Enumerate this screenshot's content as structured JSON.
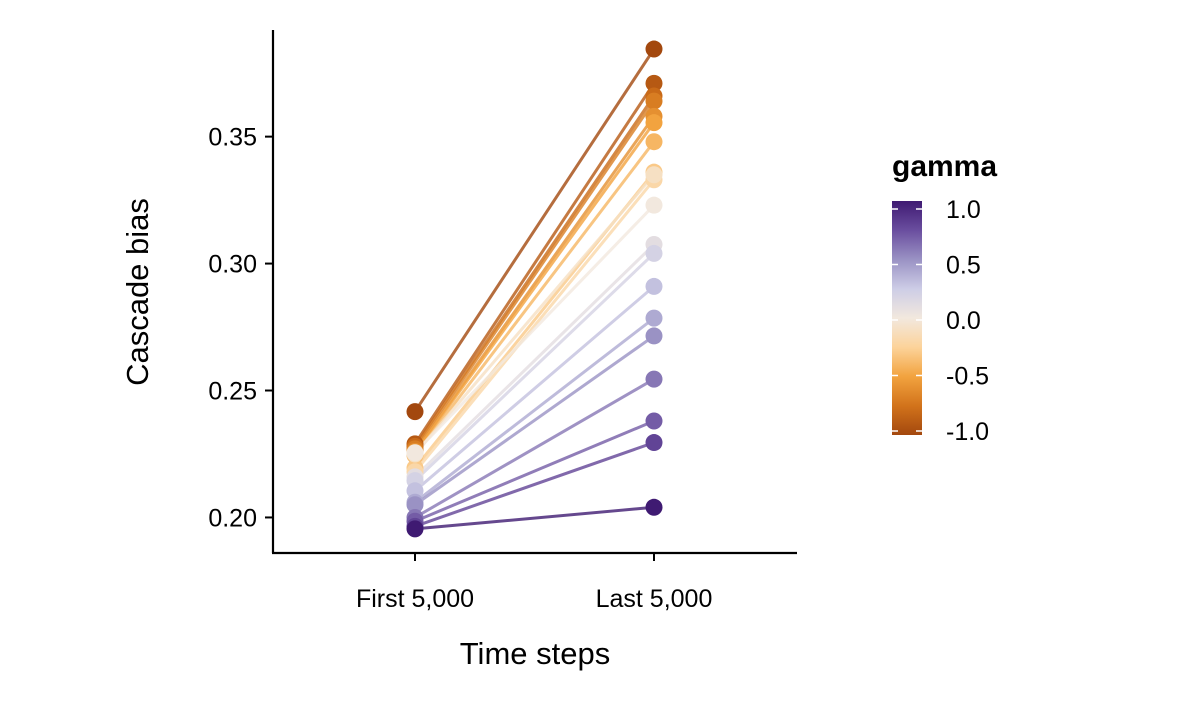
{
  "chart_data": {
    "type": "line",
    "title": "",
    "xlabel": "Time steps",
    "ylabel": "Cascade bias",
    "categories": [
      "First 5,000",
      "Last 5,000"
    ],
    "ylim": [
      0.186,
      0.392
    ],
    "yticks": [
      0.2,
      0.25,
      0.3,
      0.35
    ],
    "ytick_labels": [
      "0.20",
      "0.25",
      "0.30",
      "0.35"
    ],
    "grid": false,
    "legend": {
      "title": "gamma",
      "placement": "right",
      "type": "colorbar",
      "range": [
        -1.0,
        1.0
      ],
      "ticks": [
        1.0,
        0.5,
        0.0,
        -0.5,
        -1.0
      ],
      "tick_labels": [
        "1.0",
        "0.5",
        "0.0",
        "-0.5",
        "-1.0"
      ],
      "colors": [
        "#a3480e",
        "#d2731b",
        "#f2a33f",
        "#fcd39a",
        "#f2e8de",
        "#cdcde6",
        "#9a92c4",
        "#6a4e9f",
        "#3f1a72"
      ]
    },
    "series": [
      {
        "gamma": -1.0,
        "values": [
          0.2417,
          0.3845
        ]
      },
      {
        "gamma": -0.9,
        "values": [
          0.229,
          0.371
        ]
      },
      {
        "gamma": -0.8,
        "values": [
          0.228,
          0.366
        ]
      },
      {
        "gamma": -0.7,
        "values": [
          0.227,
          0.364
        ]
      },
      {
        "gamma": -0.6,
        "values": [
          0.226,
          0.358
        ]
      },
      {
        "gamma": -0.5,
        "values": [
          0.2255,
          0.3555
        ]
      },
      {
        "gamma": -0.4,
        "values": [
          0.2245,
          0.348
        ]
      },
      {
        "gamma": -0.3,
        "values": [
          0.2195,
          0.336
        ]
      },
      {
        "gamma": -0.2,
        "values": [
          0.218,
          0.333
        ]
      },
      {
        "gamma": -0.1,
        "values": [
          0.225,
          0.335
        ]
      },
      {
        "gamma": 0.0,
        "values": [
          0.2255,
          0.323
        ]
      },
      {
        "gamma": 0.1,
        "values": [
          0.216,
          0.3075
        ]
      },
      {
        "gamma": 0.2,
        "values": [
          0.2145,
          0.304
        ]
      },
      {
        "gamma": 0.3,
        "values": [
          0.2105,
          0.291
        ]
      },
      {
        "gamma": 0.4,
        "values": [
          0.206,
          0.2785
        ]
      },
      {
        "gamma": 0.5,
        "values": [
          0.205,
          0.2715
        ]
      },
      {
        "gamma": 0.6,
        "values": [
          0.2,
          0.2545
        ]
      },
      {
        "gamma": 0.7,
        "values": [
          0.1985,
          0.238
        ]
      },
      {
        "gamma": 0.8,
        "values": [
          0.1965,
          0.2295
        ]
      },
      {
        "gamma": 1.0,
        "values": [
          0.1955,
          0.204
        ]
      }
    ]
  }
}
